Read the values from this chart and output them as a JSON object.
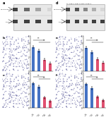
{
  "panel_labels": [
    "a",
    "b",
    "c",
    "d",
    "e",
    "f"
  ],
  "bar_colors_bc": [
    "#4472c4",
    "#4472c4",
    "#e05070",
    "#e05070"
  ],
  "bar_values_b": [
    3.4,
    2.9,
    1.6,
    1.1
  ],
  "bar_values_c": [
    3.5,
    3.0,
    1.5,
    1.0
  ],
  "bar_values_e": [
    3.3,
    2.7,
    1.7,
    1.2
  ],
  "bar_values_f": [
    3.4,
    2.8,
    1.6,
    1.1
  ],
  "error_vals": [
    0.18,
    0.2,
    0.14,
    0.13
  ],
  "cell_color_light": "#ccc8dc",
  "cell_color_dark": "#b4aece",
  "cell_dot_color": "#7070a8",
  "wb_bg": "#d8d8d8",
  "wb_band_dark": "#303030",
  "wb_band_gray": "#707070",
  "background_color": "#ffffff",
  "ylim_bars": [
    0,
    5
  ],
  "yticks_bars": [
    0,
    1,
    2,
    3,
    4,
    5
  ]
}
